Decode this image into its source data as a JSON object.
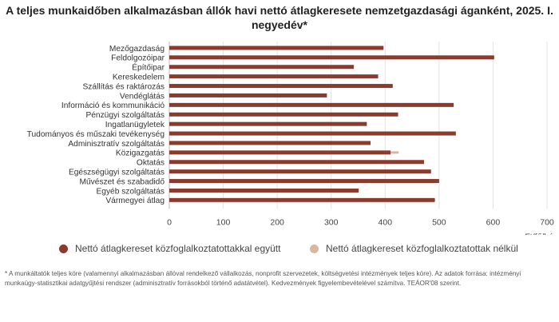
{
  "title": "A teljes munkaidőben alkalmazásban állók havi nettó átlagkeresete nemzetgazdasági áganként, 2025. I. negyedév*",
  "chart_data": {
    "type": "bar",
    "orientation": "horizontal",
    "categories": [
      "Mezőgazdaság",
      "Feldolgozóipar",
      "Építőipar",
      "Kereskedelem",
      "Szállítás és raktározás",
      "Vendéglátás",
      "Információ és kommunikáció",
      "Pénzügyi szolgáltatás",
      "Ingatlanügyletek",
      "Tudományos és műszaki tevékenység",
      "Adminisztratív szolgáltatás",
      "Közigazgatás",
      "Oktatás",
      "Egészségügyi szolgáltatás",
      "Művészet és szabadidő",
      "Egyéb szolgáltatás",
      "Vármegyei átlag"
    ],
    "series": [
      {
        "name": "Nettó átlagkereset közfoglalkoztatottakkal együtt",
        "color": "#8b3a2e",
        "values": [
          397,
          602,
          342,
          387,
          414,
          292,
          527,
          424,
          366,
          531,
          373,
          410,
          472,
          485,
          500,
          351,
          492
        ]
      },
      {
        "name": "Nettó átlagkereset közfoglalkoztatottak nélkül",
        "color": "#d9b8a0",
        "values": [
          397,
          602,
          342,
          387,
          414,
          292,
          527,
          424,
          366,
          531,
          373,
          425,
          472,
          485,
          500,
          351,
          493
        ]
      }
    ],
    "xlim": [
      0,
      700
    ],
    "xticks": [
      0,
      100,
      200,
      300,
      400,
      500,
      600,
      700
    ],
    "xlabel": "ezer Ft/fő/hó",
    "grid": true,
    "legend_position": "bottom"
  },
  "footnote": "* A munkáltatók teljes köre (valamennyi alkalmazásban állóval rendelkező vállalkozás, nonprofit szervezetek, költségvetési intézmények teljes köre). Az adatok forrása: intézményi munkaügy-statisztikai adatgyűjtési rendszer (adminisztratív forrásokból történő adatátvétel). Kedvezmények figyelembevételével számítva. TEÁOR'08 szerint."
}
